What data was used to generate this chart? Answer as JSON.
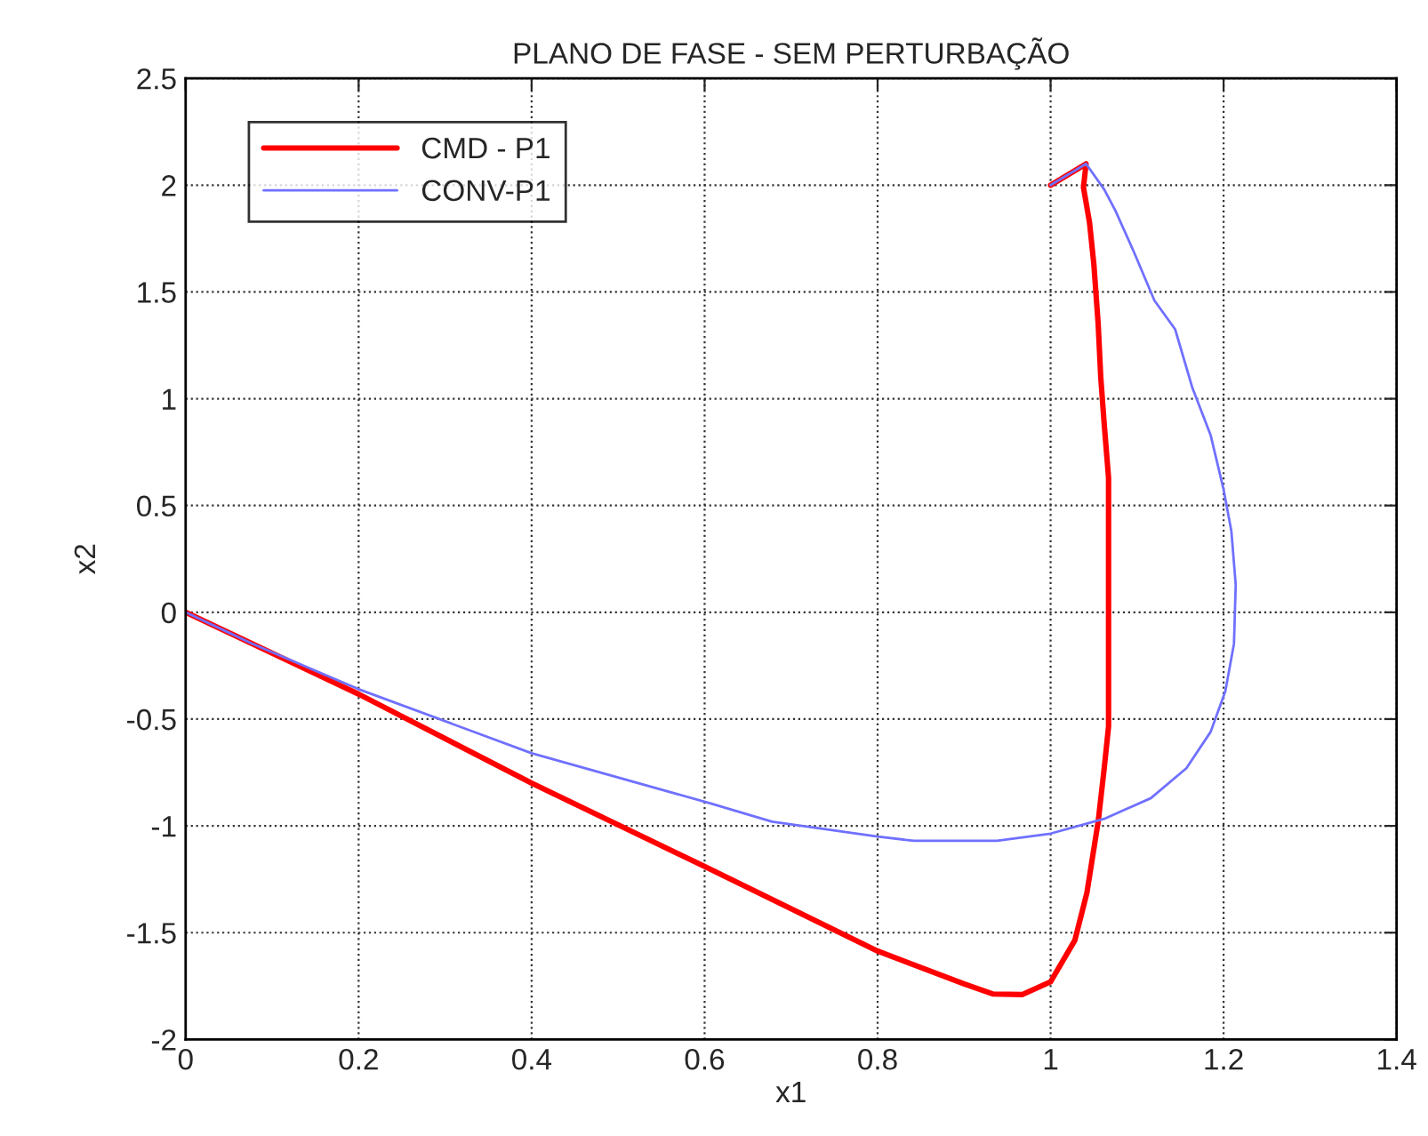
{
  "chart_data": {
    "type": "line",
    "title": "PLANO DE FASE - SEM PERTURBAÇÃO",
    "xlabel": "x1",
    "ylabel": "x2",
    "xlim": [
      0,
      1.4
    ],
    "xticks": [
      0,
      0.2,
      0.4,
      0.6,
      0.8,
      1,
      1.2,
      1.4
    ],
    "ylim": [
      -2,
      2.5
    ],
    "yticks": [
      -2,
      -1.5,
      -1,
      -0.5,
      0,
      0.5,
      1,
      1.5,
      2,
      2.5
    ],
    "grid": true,
    "legend": "top left",
    "line_style": "solid",
    "marker": "none",
    "series": [
      {
        "name": "CMD - P1",
        "color": "#ff0000",
        "x": [
          1.0,
          1.041,
          1.038,
          1.045,
          1.05,
          1.055,
          1.058,
          1.062,
          1.067,
          1.067,
          1.067,
          1.067,
          1.062,
          1.055,
          1.042,
          1.028,
          1.0,
          0.967,
          0.933,
          0.9,
          0.8,
          0.6,
          0.4,
          0.2,
          0
        ],
        "values": [
          2.0,
          2.1,
          1.99,
          1.825,
          1.63,
          1.35,
          1.1,
          0.88,
          0.63,
          0.05,
          -0.2,
          -0.535,
          -0.73,
          -0.98,
          -1.313,
          -1.536,
          -1.73,
          -1.79,
          -1.787,
          -1.74,
          -1.586,
          -1.19,
          -0.8,
          -0.383,
          0
        ]
      },
      {
        "name": "CONV-P1",
        "color": "#7070ff",
        "x": [
          1.0,
          1.041,
          1.062,
          1.075,
          1.096,
          1.12,
          1.144,
          1.164,
          1.185,
          1.2,
          1.209,
          1.214,
          1.212,
          1.202,
          1.185,
          1.157,
          1.116,
          1.062,
          1.0,
          0.938,
          0.842,
          0.8,
          0.678,
          0.607,
          0.4,
          0.2,
          0.076,
          0
        ],
        "values": [
          2.0,
          2.1,
          1.98,
          1.88,
          1.69,
          1.46,
          1.325,
          1.05,
          0.83,
          0.575,
          0.38,
          0.13,
          -0.147,
          -0.37,
          -0.56,
          -0.73,
          -0.87,
          -0.967,
          -1.036,
          -1.07,
          -1.07,
          -1.05,
          -0.98,
          -0.895,
          -0.66,
          -0.36,
          -0.145,
          0
        ]
      }
    ]
  }
}
